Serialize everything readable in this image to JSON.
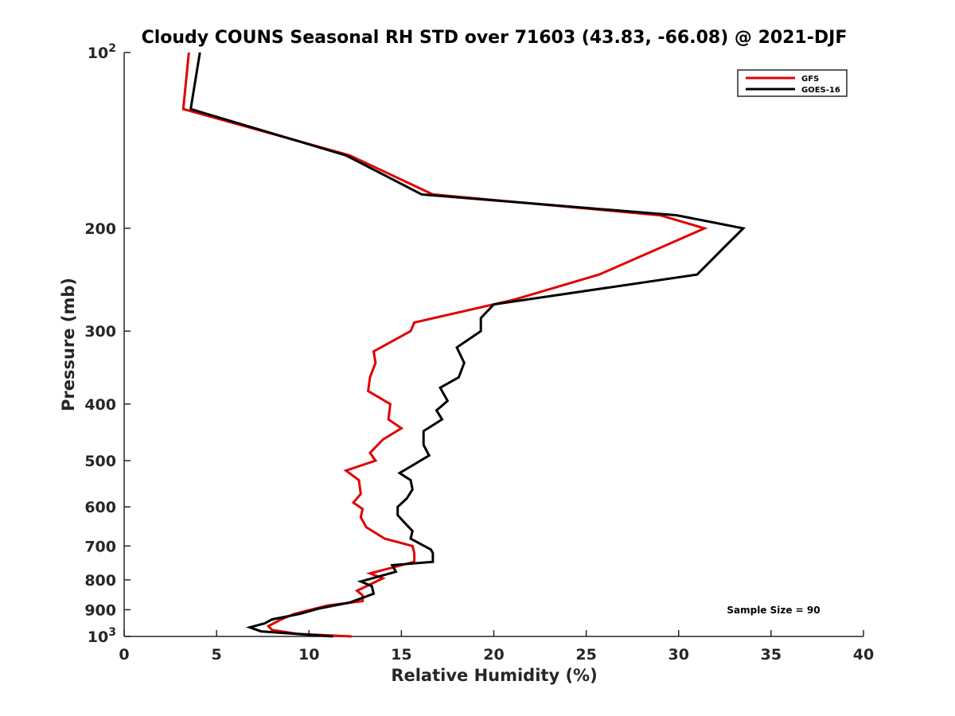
{
  "chart_data": {
    "type": "line",
    "title": "Cloudy COUNS Seasonal RH STD over 71603 (43.83, -66.08) @ 2021-DJF",
    "xlabel": "Relative Humidity (%)",
    "ylabel": "Pressure (mb)",
    "xlim": [
      0,
      40
    ],
    "ylim": [
      100,
      1000
    ],
    "yscale": "log-reversed",
    "xticks": [
      "0",
      "5",
      "10",
      "15",
      "20",
      "25",
      "30",
      "35",
      "40"
    ],
    "yticks": [
      {
        "value": 100,
        "label": "10",
        "exp": "2"
      },
      {
        "value": 200,
        "label": "200"
      },
      {
        "value": 300,
        "label": "300"
      },
      {
        "value": 400,
        "label": "400"
      },
      {
        "value": 500,
        "label": "500"
      },
      {
        "value": 600,
        "label": "600"
      },
      {
        "value": 700,
        "label": "700"
      },
      {
        "value": 800,
        "label": "800"
      },
      {
        "value": 900,
        "label": "900"
      },
      {
        "value": 1000,
        "label": "10",
        "exp": "3"
      }
    ],
    "legend_position": "top-right",
    "annotation": "Sample Size = 90",
    "series": [
      {
        "name": "GFS",
        "color": "#e00000",
        "points": [
          [
            3.5,
            100
          ],
          [
            3.2,
            125
          ],
          [
            12.2,
            150
          ],
          [
            16.7,
            175
          ],
          [
            29.0,
            190
          ],
          [
            31.4,
            200
          ],
          [
            25.7,
            240
          ],
          [
            21.1,
            265
          ],
          [
            15.7,
            290
          ],
          [
            15.5,
            300
          ],
          [
            13.5,
            325
          ],
          [
            13.6,
            340
          ],
          [
            13.3,
            360
          ],
          [
            13.2,
            380
          ],
          [
            14.4,
            400
          ],
          [
            14.3,
            425
          ],
          [
            15.0,
            440
          ],
          [
            14.0,
            460
          ],
          [
            13.3,
            485
          ],
          [
            13.6,
            500
          ],
          [
            12.0,
            520
          ],
          [
            12.7,
            540
          ],
          [
            12.8,
            570
          ],
          [
            12.4,
            590
          ],
          [
            12.9,
            605
          ],
          [
            12.8,
            625
          ],
          [
            13.1,
            650
          ],
          [
            14.1,
            680
          ],
          [
            15.6,
            700
          ],
          [
            15.7,
            720
          ],
          [
            15.7,
            745
          ],
          [
            13.3,
            780
          ],
          [
            14.0,
            795
          ],
          [
            12.6,
            835
          ],
          [
            12.9,
            850
          ],
          [
            12.9,
            870
          ],
          [
            11.0,
            885
          ],
          [
            9.2,
            915
          ],
          [
            8.5,
            935
          ],
          [
            7.8,
            960
          ],
          [
            8.0,
            975
          ],
          [
            9.4,
            990
          ],
          [
            12.3,
            1000
          ]
        ]
      },
      {
        "name": "GOES-16",
        "color": "#000000",
        "points": [
          [
            4.1,
            100
          ],
          [
            3.6,
            125
          ],
          [
            12.0,
            150
          ],
          [
            16.1,
            175
          ],
          [
            29.9,
            190
          ],
          [
            33.5,
            200
          ],
          [
            32.5,
            215
          ],
          [
            31.0,
            240
          ],
          [
            20.0,
            270
          ],
          [
            19.3,
            285
          ],
          [
            19.3,
            300
          ],
          [
            18.0,
            320
          ],
          [
            18.4,
            340
          ],
          [
            18.1,
            360
          ],
          [
            17.1,
            375
          ],
          [
            17.5,
            395
          ],
          [
            16.9,
            410
          ],
          [
            17.2,
            425
          ],
          [
            16.2,
            445
          ],
          [
            16.2,
            470
          ],
          [
            16.5,
            490
          ],
          [
            14.9,
            525
          ],
          [
            15.5,
            540
          ],
          [
            15.6,
            560
          ],
          [
            15.3,
            580
          ],
          [
            14.8,
            600
          ],
          [
            14.8,
            620
          ],
          [
            15.2,
            640
          ],
          [
            15.6,
            660
          ],
          [
            15.5,
            680
          ],
          [
            16.6,
            710
          ],
          [
            16.7,
            720
          ],
          [
            16.7,
            745
          ],
          [
            14.5,
            755
          ],
          [
            14.7,
            775
          ],
          [
            12.8,
            805
          ],
          [
            13.4,
            820
          ],
          [
            13.5,
            845
          ],
          [
            12.2,
            875
          ],
          [
            10.6,
            895
          ],
          [
            9.5,
            915
          ],
          [
            8.0,
            935
          ],
          [
            7.6,
            950
          ],
          [
            6.8,
            965
          ],
          [
            7.4,
            980
          ],
          [
            9.3,
            990
          ],
          [
            11.3,
            1000
          ]
        ]
      }
    ]
  }
}
